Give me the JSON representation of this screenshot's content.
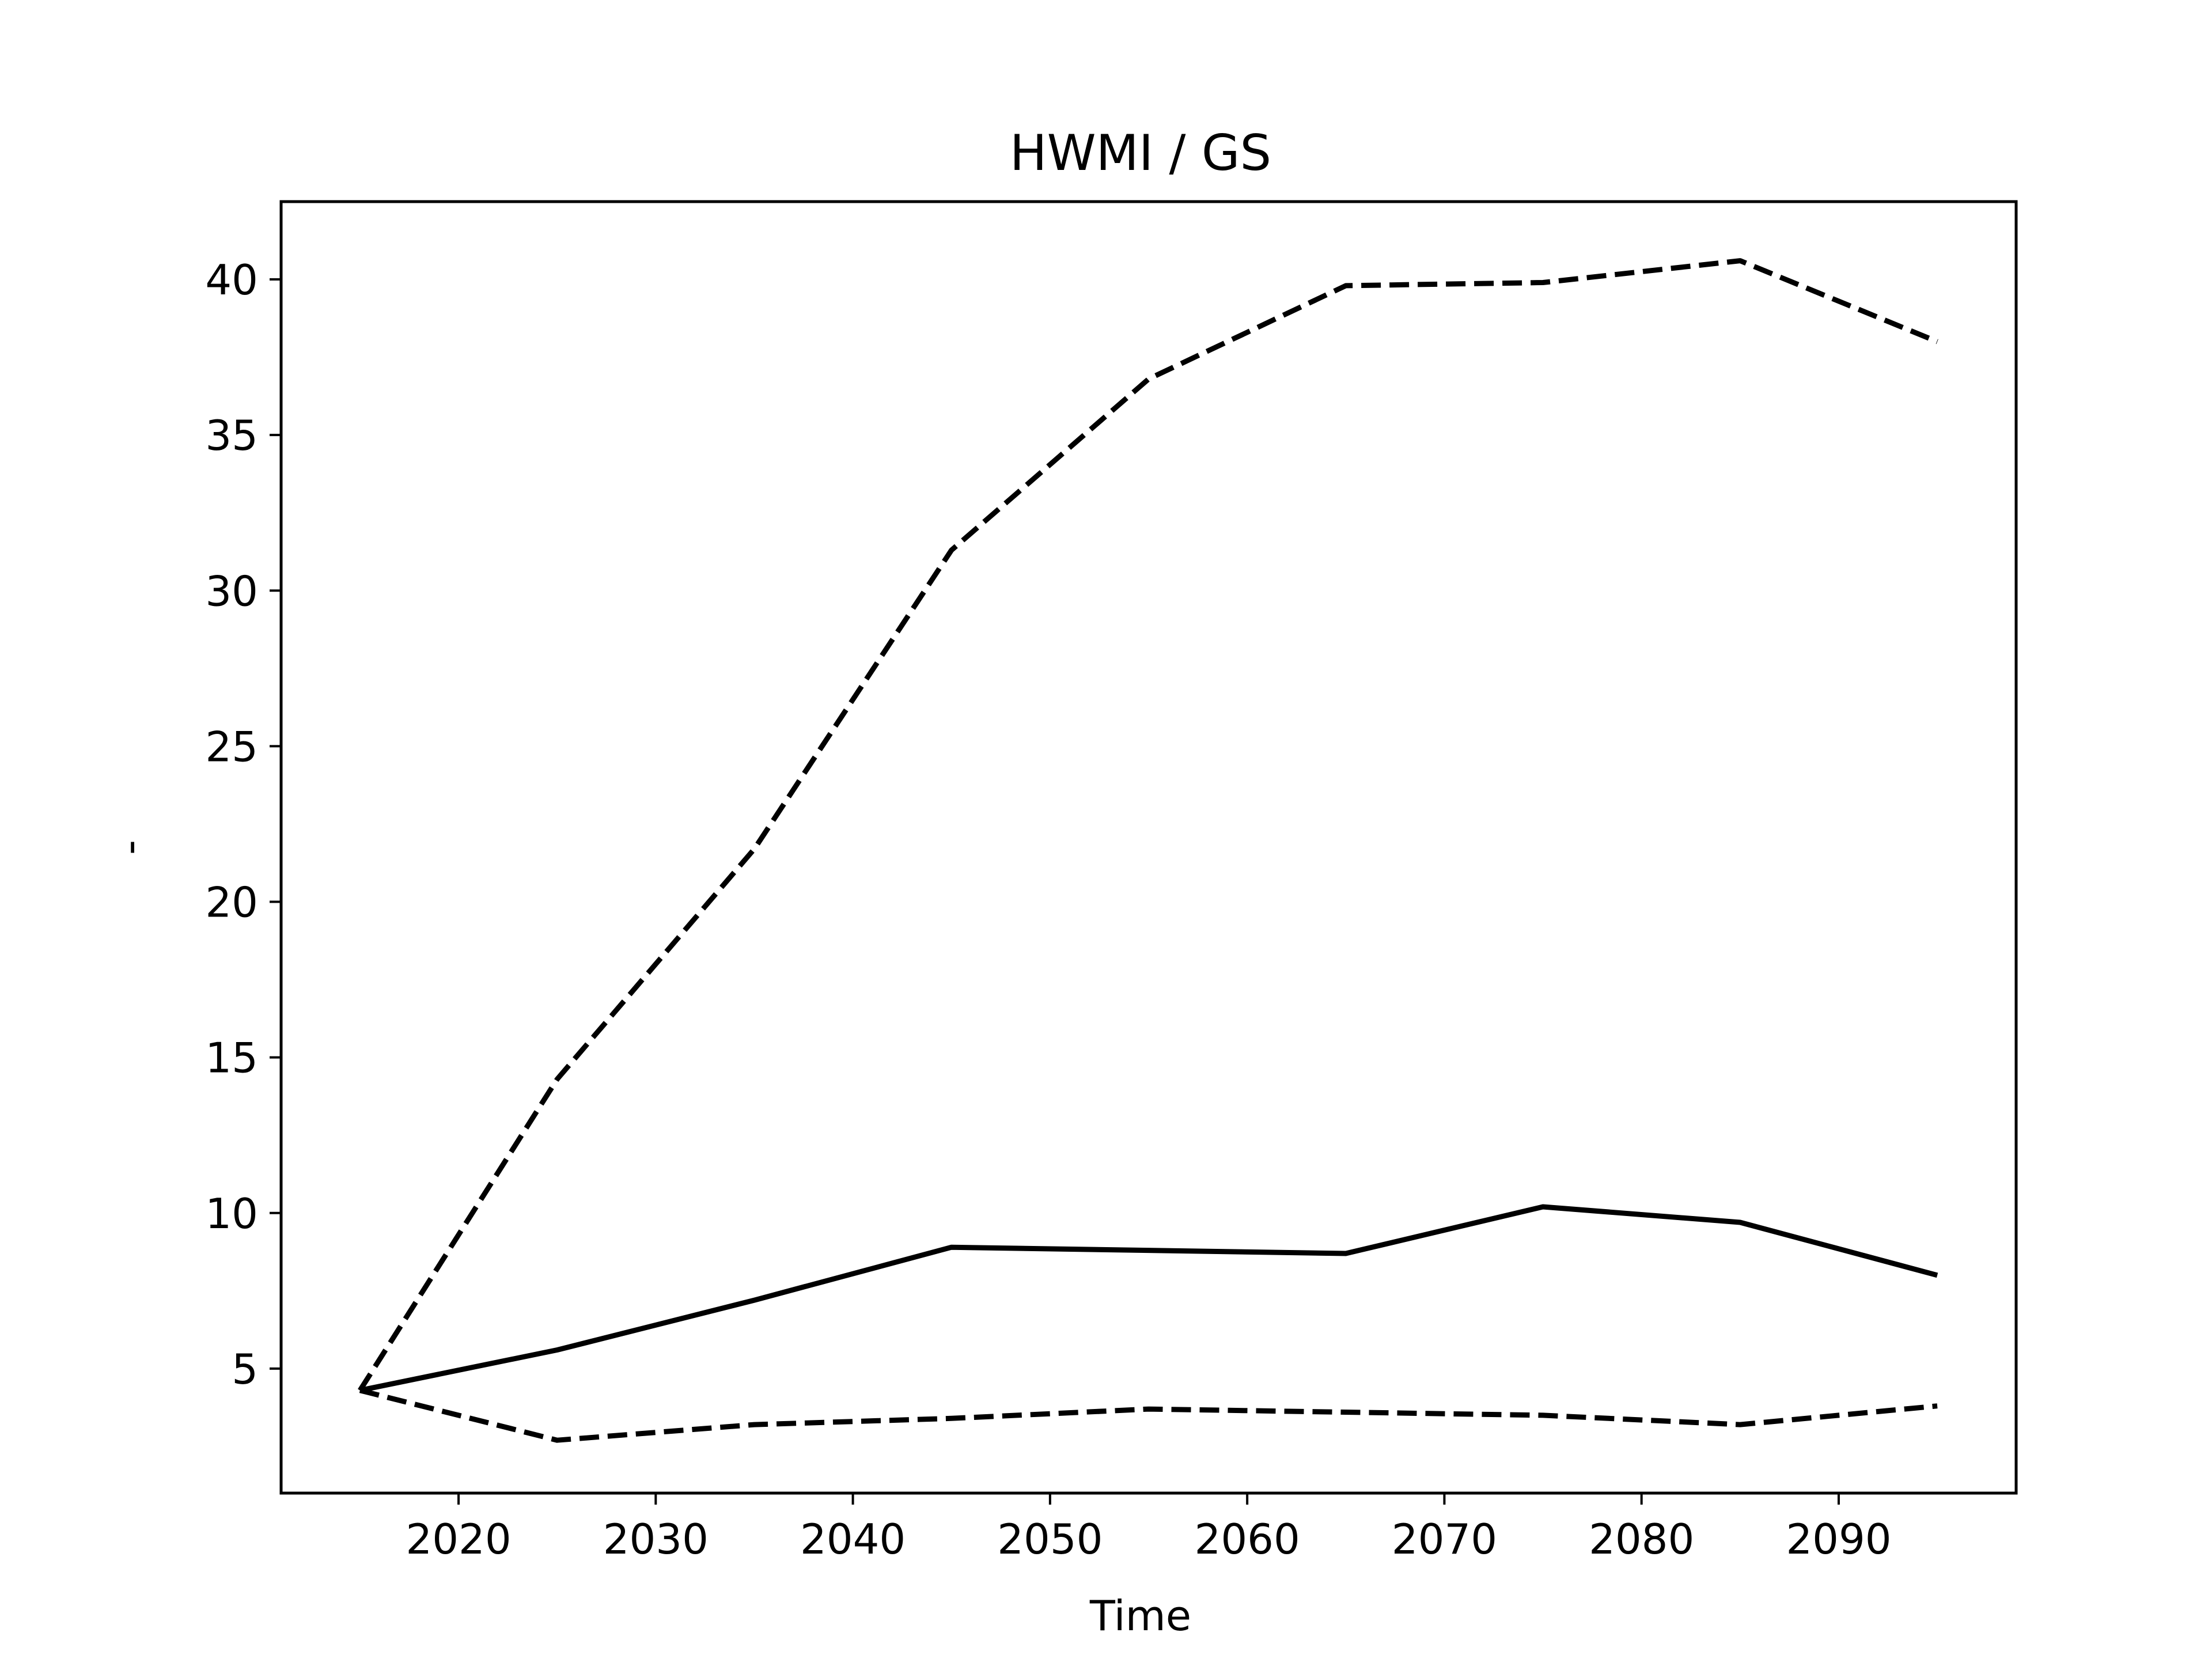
{
  "chart_data": {
    "type": "line",
    "title": "HWMI / GS",
    "xlabel": "Time",
    "ylabel": "-",
    "xlim": [
      2011,
      2099
    ],
    "ylim": [
      1.0,
      42.5
    ],
    "xticks": [
      2020,
      2030,
      2040,
      2050,
      2060,
      2070,
      2080,
      2090
    ],
    "yticks": [
      5,
      10,
      15,
      20,
      25,
      30,
      35,
      40
    ],
    "grid": false,
    "legend": "none",
    "series": [
      {
        "style": "solid",
        "color": "#000000",
        "x": [
          2015,
          2025,
          2035,
          2045,
          2055,
          2065,
          2075,
          2085,
          2095
        ],
        "y": [
          4.3,
          5.6,
          7.2,
          8.9,
          8.8,
          8.7,
          10.2,
          9.7,
          8.0
        ]
      },
      {
        "style": "dashed",
        "color": "#000000",
        "x": [
          2015,
          2025,
          2035,
          2045,
          2055,
          2065,
          2075,
          2085,
          2095
        ],
        "y": [
          4.3,
          14.3,
          21.7,
          31.3,
          36.8,
          39.8,
          39.9,
          40.6,
          38.0
        ]
      },
      {
        "style": "dashed",
        "color": "#000000",
        "x": [
          2015,
          2025,
          2035,
          2045,
          2055,
          2065,
          2075,
          2085,
          2095
        ],
        "y": [
          4.3,
          2.7,
          3.2,
          3.4,
          3.7,
          3.6,
          3.5,
          3.2,
          3.8
        ]
      }
    ]
  }
}
